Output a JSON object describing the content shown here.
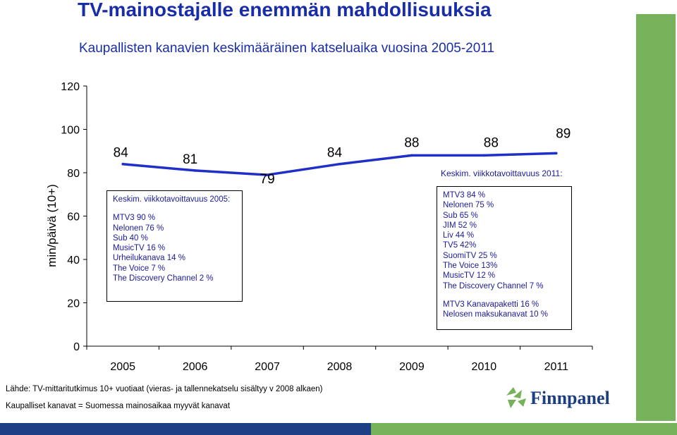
{
  "page": {
    "title": "TV-mainostajalle enemmän mahdollisuuksia",
    "subtitle": "Kaupallisten kanavien keskimääräinen katseluaika vuosina 2005-2011"
  },
  "chart_data": {
    "type": "line",
    "categories": [
      "2005",
      "2006",
      "2007",
      "2008",
      "2009",
      "2010",
      "2011"
    ],
    "values": [
      84,
      81,
      79,
      84,
      88,
      88,
      89
    ],
    "value_labels": [
      "84",
      "81",
      "79",
      "84",
      "88",
      "88",
      "89"
    ],
    "ylabel": "min/päivä (10+)",
    "ylim": [
      0,
      120
    ],
    "yticks": [
      "0",
      "20",
      "40",
      "60",
      "80",
      "100",
      "120"
    ],
    "grid": false,
    "line_color": "#1f2fc8"
  },
  "box2005": {
    "head": "Keskim. viikkotavoittavuus 2005:",
    "lines": [
      "MTV3 90 %",
      "Nelonen 76 %",
      "Sub 40 %",
      "MusicTV 16 %",
      "Urheilukanava 14 %",
      "The Voice 7 %",
      "The Discovery Channel 2 %"
    ]
  },
  "box2011": {
    "head": "Keskim. viikkotavoittavuus 2011:",
    "lines": [
      "MTV3 84 %",
      "Nelonen 75 %",
      "Sub 65 %",
      "JIM 52 %",
      "Liv 44 %",
      "TV5 42%",
      "SuomiTV 25 %",
      "The Voice 13%",
      "MusicTV 12 %",
      "The Discovery Channel 7 %"
    ],
    "extra": [
      "MTV3 Kanavapaketti 16 %",
      "Nelosen maksukanavat 10 %"
    ]
  },
  "footnotes": {
    "source": "Lähde: TV-mittaritutkimus 10+ vuotiaat (vieras- ja tallennekatselu sisältyy v 2008 alkaen)",
    "definition": "Kaupalliset kanavat = Suomessa mainosaikaa myyvät kanavat"
  },
  "logo": {
    "text": "Finnpanel",
    "color": "#1c3e84",
    "accent": "#76b25a"
  },
  "colors": {
    "title": "#1a2da8",
    "green": "#76b25a",
    "navy": "#1c3e84"
  }
}
